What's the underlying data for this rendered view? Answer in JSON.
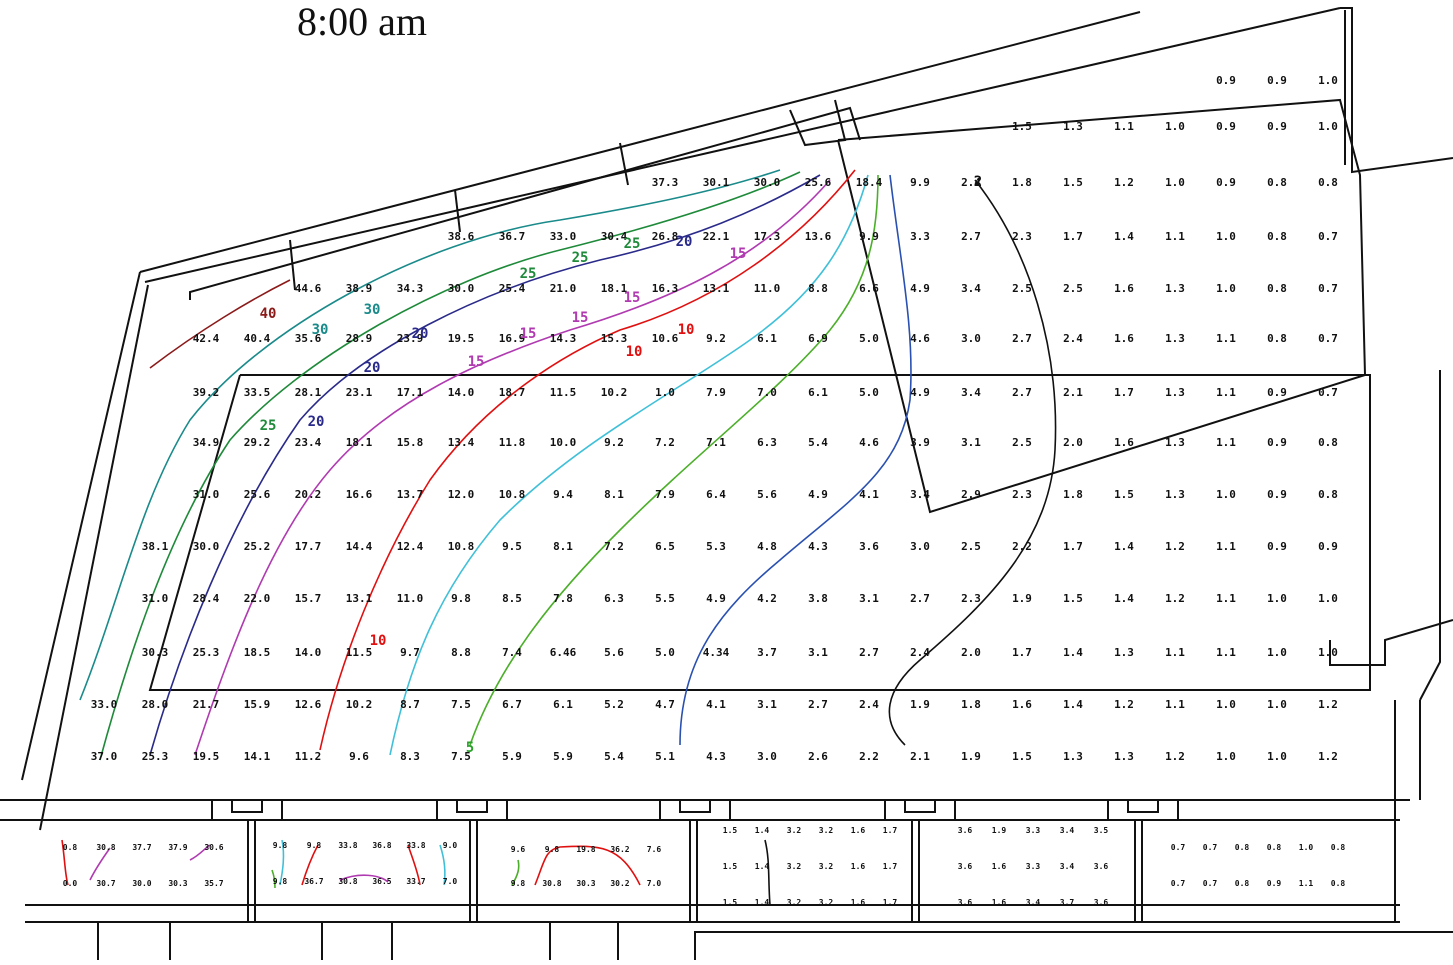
{
  "title": "8:00 am",
  "grid": {
    "rows": [
      {
        "values": [
          "0.9",
          "0.9",
          "1.0"
        ]
      },
      {
        "values": [
          "1.5",
          "1.3",
          "1.1",
          "1.0",
          "0.9",
          "0.9",
          "1.0"
        ]
      },
      {
        "values": [
          "37.3",
          "30.1",
          "30.0",
          "25.6",
          "18.4",
          "9.9",
          "2.4",
          "1.8",
          "1.5",
          "1.2",
          "1.0",
          "0.9",
          "0.8",
          "0.8"
        ]
      },
      {
        "values": [
          "38.6",
          "36.7",
          "33.0",
          "30.4",
          "26.8",
          "22.1",
          "17.3",
          "13.6",
          "9.9",
          "3.3",
          "2.7",
          "2.3",
          "1.7",
          "1.4",
          "1.1",
          "1.0",
          "0.8",
          "0.7"
        ]
      },
      {
        "values": [
          "44.6",
          "38.9",
          "34.3",
          "30.0",
          "25.4",
          "21.0",
          "18.1",
          "16.3",
          "13.1",
          "11.0",
          "8.8",
          "6.6",
          "4.9",
          "3.4",
          "2.5",
          "2.5",
          "1.6",
          "1.3",
          "1.0",
          "0.8",
          "0.7"
        ]
      },
      {
        "values": [
          "42.4",
          "40.4",
          "35.6",
          "28.9",
          "23.9",
          "19.5",
          "16.9",
          "14.3",
          "15.3",
          "10.6",
          "9.2",
          "6.1",
          "6.9",
          "5.0",
          "4.6",
          "3.0",
          "2.7",
          "2.4",
          "1.6",
          "1.3",
          "1.1",
          "0.8",
          "0.7"
        ]
      },
      {
        "values": [
          "39.2",
          "33.5",
          "28.1",
          "23.1",
          "17.1",
          "14.0",
          "18.7",
          "11.5",
          "10.2",
          "1.0",
          "7.9",
          "7.0",
          "6.1",
          "5.0",
          "4.9",
          "3.4",
          "2.7",
          "2.1",
          "1.7",
          "1.3",
          "1.1",
          "0.9",
          "0.7"
        ]
      },
      {
        "values": [
          "34.9",
          "29.2",
          "23.4",
          "18.1",
          "15.8",
          "13.4",
          "11.8",
          "10.0",
          "9.2",
          "7.2",
          "7.1",
          "6.3",
          "5.4",
          "4.6",
          "3.9",
          "3.1",
          "2.5",
          "2.0",
          "1.6",
          "1.3",
          "1.1",
          "0.9",
          "0.8"
        ]
      },
      {
        "values": [
          "31.0",
          "25.6",
          "20.2",
          "16.6",
          "13.7",
          "12.0",
          "10.8",
          "9.4",
          "8.1",
          "7.9",
          "6.4",
          "5.6",
          "4.9",
          "4.1",
          "3.4",
          "2.9",
          "2.3",
          "1.8",
          "1.5",
          "1.3",
          "1.0",
          "0.9",
          "0.8"
        ]
      },
      {
        "values": [
          "38.1",
          "30.0",
          "25.2",
          "17.7",
          "14.4",
          "12.4",
          "10.8",
          "9.5",
          "8.1",
          "7.2",
          "6.5",
          "5.3",
          "4.8",
          "4.3",
          "3.6",
          "3.0",
          "2.5",
          "2.2",
          "1.7",
          "1.4",
          "1.2",
          "1.1",
          "0.9",
          "0.9"
        ]
      },
      {
        "values": [
          "31.0",
          "28.4",
          "22.0",
          "15.7",
          "13.1",
          "11.0",
          "9.8",
          "8.5",
          "7.8",
          "6.3",
          "5.5",
          "4.9",
          "4.2",
          "3.8",
          "3.1",
          "2.7",
          "2.3",
          "1.9",
          "1.5",
          "1.4",
          "1.2",
          "1.1",
          "1.0",
          "1.0"
        ]
      },
      {
        "values": [
          "30.3",
          "25.3",
          "18.5",
          "14.0",
          "11.5",
          "9.7",
          "8.8",
          "7.4",
          "6.46",
          "5.6",
          "5.0",
          "4.34",
          "3.7",
          "3.1",
          "2.7",
          "2.4",
          "2.0",
          "1.7",
          "1.4",
          "1.3",
          "1.1",
          "1.1",
          "1.0",
          "1.0"
        ]
      },
      {
        "values": [
          "33.0",
          "28.0",
          "21.7",
          "15.9",
          "12.6",
          "10.2",
          "8.7",
          "7.5",
          "6.7",
          "6.1",
          "5.2",
          "4.7",
          "4.1",
          "3.1",
          "2.7",
          "2.4",
          "1.9",
          "1.8",
          "1.6",
          "1.4",
          "1.2",
          "1.1",
          "1.0",
          "1.0",
          "1.2"
        ]
      },
      {
        "values": [
          "37.0",
          "25.3",
          "19.5",
          "14.1",
          "11.2",
          "9.6",
          "8.3",
          "7.5",
          "5.9",
          "5.9",
          "5.4",
          "5.1",
          "4.3",
          "3.0",
          "2.6",
          "2.2",
          "2.1",
          "1.9",
          "1.5",
          "1.3",
          "1.3",
          "1.2",
          "1.0",
          "1.0",
          "1.2"
        ]
      }
    ]
  },
  "contour_labels": [
    {
      "text": "40",
      "color": "#8b1a1a"
    },
    {
      "text": "30",
      "color": "#1a8a8a"
    },
    {
      "text": "30",
      "color": "#1a8a8a"
    },
    {
      "text": "25",
      "color": "#1e8a3a"
    },
    {
      "text": "25",
      "color": "#1e8a3a"
    },
    {
      "text": "25",
      "color": "#1e8a3a"
    },
    {
      "text": "25",
      "color": "#1e8a3a"
    },
    {
      "text": "20",
      "color": "#2a2a8a"
    },
    {
      "text": "20",
      "color": "#2a2a8a"
    },
    {
      "text": "20",
      "color": "#2a2a8a"
    },
    {
      "text": "20",
      "color": "#2a2a8a"
    },
    {
      "text": "15",
      "color": "#b03ab0"
    },
    {
      "text": "15",
      "color": "#b03ab0"
    },
    {
      "text": "15",
      "color": "#b03ab0"
    },
    {
      "text": "15",
      "color": "#b03ab0"
    },
    {
      "text": "15",
      "color": "#b03ab0"
    },
    {
      "text": "10",
      "color": "#e01010"
    },
    {
      "text": "10",
      "color": "#e01010"
    },
    {
      "text": "10",
      "color": "#e01010"
    },
    {
      "text": "5",
      "color": "#2aa02a"
    },
    {
      "text": "2",
      "color": "#111111"
    }
  ],
  "lower_rooms": [
    {
      "rows": [
        [
          "0.8",
          "30.8",
          "37.7",
          "37.9",
          "30.6"
        ],
        [
          "0.0",
          "30.7",
          "30.0",
          "30.3",
          "35.7"
        ]
      ]
    },
    {
      "rows": [
        [
          "9.8",
          "9.8",
          "33.8",
          "36.8",
          "33.8",
          "9.0"
        ],
        [
          "9.8",
          "36.7",
          "30.8",
          "36.5",
          "33.7",
          "7.0"
        ]
      ]
    },
    {
      "rows": [
        [
          "9.6",
          "9.8",
          "19.8",
          "36.2",
          "7.6"
        ],
        [
          "9.8",
          "30.8",
          "30.3",
          "30.2",
          "7.0"
        ]
      ]
    },
    {
      "rows": [
        [
          "1.5",
          "1.4",
          "3.2",
          "3.2",
          "1.6",
          "1.7"
        ],
        [
          "1.5",
          "1.4",
          "3.2",
          "3.2",
          "1.6",
          "1.7"
        ],
        [
          "1.5",
          "1.4",
          "3.2",
          "3.2",
          "1.6",
          "1.7"
        ]
      ]
    },
    {
      "rows": [
        [
          "3.6",
          "1.9",
          "3.3",
          "3.4",
          "3.5"
        ],
        [
          "3.6",
          "1.6",
          "3.3",
          "3.4",
          "3.6"
        ],
        [
          "3.6",
          "1.6",
          "3.4",
          "3.7",
          "3.6"
        ]
      ]
    },
    {
      "rows": [
        [
          "0.7",
          "0.7",
          "0.8",
          "0.8",
          "1.0",
          "0.8"
        ],
        [
          "0.7",
          "0.7",
          "0.8",
          "0.9",
          "1.1",
          "0.8"
        ]
      ]
    }
  ],
  "colors": {
    "walls": "#111111",
    "value_text": "#111111",
    "c40": "#8b1a1a",
    "c30": "#1a8a8a",
    "c25": "#1e8a3a",
    "c20": "#2a2a8a",
    "c15": "#b03ab0",
    "c10": "#e01010",
    "c8": "#40c0d8",
    "c5": "#4caf2a",
    "c3": "#2a50b0",
    "c2": "#111111"
  }
}
